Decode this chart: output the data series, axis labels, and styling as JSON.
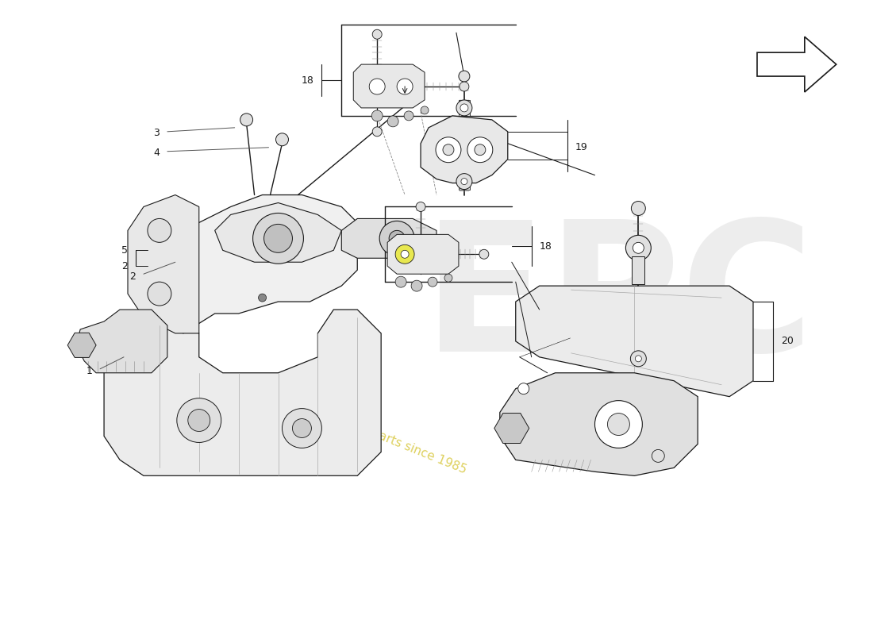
{
  "bg_color": "#ffffff",
  "line_color": "#1a1a1a",
  "fill_light": "#f0f0f0",
  "fill_mid": "#e0e0e0",
  "fill_dark": "#c8c8c8",
  "fill_white": "#ffffff",
  "highlight_yellow": "#e8e850",
  "watermark_color": "#d8d8d8",
  "watermark_text_color": "#d8c840",
  "label_color": "#000000",
  "fig_width": 11.0,
  "fig_height": 8.0,
  "dpi": 100
}
